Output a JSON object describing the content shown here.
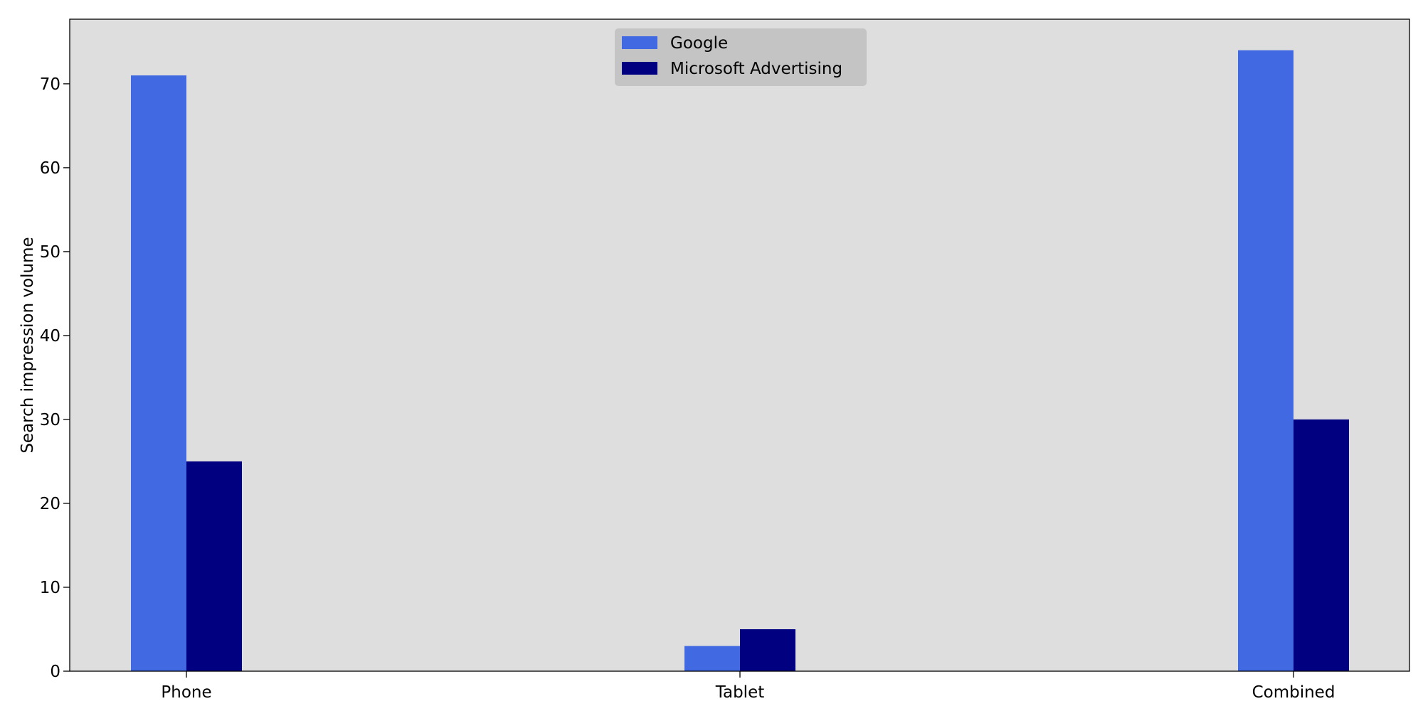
{
  "chart_data": {
    "type": "bar",
    "title": "",
    "xlabel": "",
    "ylabel": "Search impression volume",
    "categories": [
      "Phone",
      "Tablet",
      "Combined"
    ],
    "series": [
      {
        "name": "Google",
        "values": [
          71,
          3,
          74
        ],
        "color": "#4169E1"
      },
      {
        "name": "Microsoft Advertising",
        "values": [
          25,
          5,
          30
        ],
        "color": "#000080"
      }
    ],
    "ylim": [
      0,
      77.7
    ],
    "yticks": [
      0,
      10,
      20,
      30,
      40,
      50,
      60,
      70
    ],
    "grid": false,
    "legend_position": "top-center",
    "plot_background": "#DEDEDE",
    "legend_background": "#C4C4C4"
  }
}
